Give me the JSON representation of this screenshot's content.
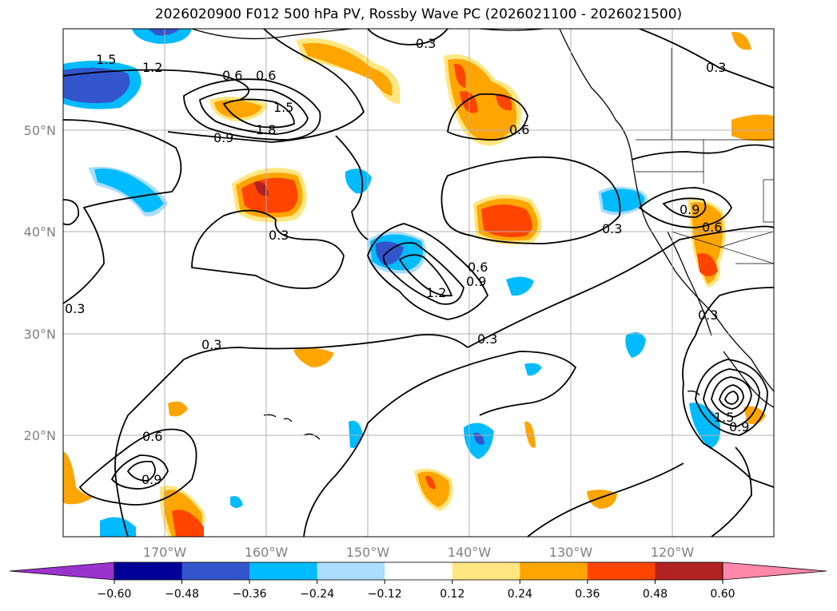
{
  "title": "2026020900 F012 500 hPa PV, Rossby Wave PC (2026021100 - 2026021500)",
  "latitudes": [
    {
      "label": "20°N",
      "lat": 20
    },
    {
      "label": "30°N",
      "lat": 30
    },
    {
      "label": "40°N",
      "lat": 40
    },
    {
      "label": "50°N",
      "lat": 50
    }
  ],
  "longitudes": [
    {
      "label": "170°W",
      "lon": -170
    },
    {
      "label": "160°W",
      "lon": -160
    },
    {
      "label": "150°W",
      "lon": -150
    },
    {
      "label": "140°W",
      "lon": -140
    },
    {
      "label": "130°W",
      "lon": -130
    },
    {
      "label": "120°W",
      "lon": -120
    }
  ],
  "extent": {
    "lon_min": -180,
    "lon_max": -110,
    "lat_min": 10,
    "lat_max": 60
  },
  "contour_labels": [
    "0.3",
    "0.3",
    "0.3",
    "0.3",
    "0.3",
    "0.3",
    "0.3",
    "0.6",
    "0.6",
    "0.6",
    "0.6",
    "0.6",
    "0.9",
    "0.9",
    "0.9",
    "0.9",
    "1.2",
    "1.2",
    "1.5",
    "1.5",
    "1.8",
    "1.5",
    "0.9",
    "0.6",
    "0.3"
  ],
  "colorbar": {
    "colors": [
      "#9933cc",
      "#000099",
      "#3355cc",
      "#00bbff",
      "#aaddff",
      "#ffffff",
      "#ffe680",
      "#ffa500",
      "#ff4400",
      "#b22222",
      "#ff88aa"
    ],
    "ticks": [
      "−0.60",
      "−0.48",
      "−0.36",
      "−0.24",
      "−0.12",
      "0.12",
      "0.24",
      "0.36",
      "0.48",
      "0.60"
    ]
  },
  "shading_levels": [
    -0.6,
    -0.48,
    -0.36,
    -0.24,
    -0.12,
    0.12,
    0.24,
    0.36,
    0.48,
    0.6
  ]
}
